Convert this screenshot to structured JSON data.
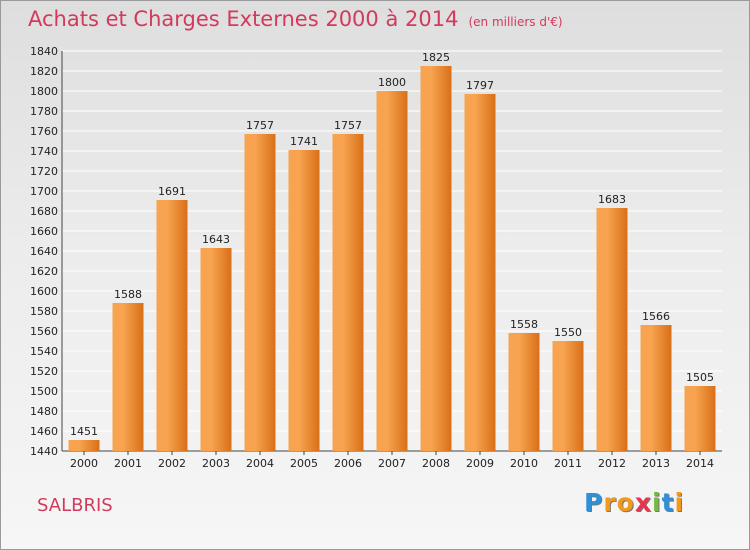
{
  "title": "Achats et Charges Externes 2000 à 2014",
  "subtitle": "(en milliers d'€)",
  "place": "SALBRIS",
  "logo": {
    "letters": [
      "P",
      "r",
      "o",
      "x",
      "i",
      "t",
      "i"
    ],
    "colors": [
      "#2f8fd8",
      "#f39a1e",
      "#f39a1e",
      "#e8344f",
      "#78b844",
      "#2f8fd8",
      "#f39a1e"
    ]
  },
  "colors": {
    "bar_light": "#f7a34f",
    "bar_dark": "#d86f18",
    "grid": "#ffffff",
    "title": "#d23a5c"
  },
  "chart_data": {
    "type": "bar",
    "categories": [
      "2000",
      "2001",
      "2002",
      "2003",
      "2004",
      "2005",
      "2006",
      "2007",
      "2008",
      "2009",
      "2010",
      "2011",
      "2012",
      "2013",
      "2014"
    ],
    "values": [
      1451,
      1588,
      1691,
      1643,
      1757,
      1741,
      1757,
      1800,
      1825,
      1797,
      1558,
      1550,
      1683,
      1566,
      1505
    ],
    "ylim": [
      1440,
      1840
    ],
    "ytick_step": 20,
    "grid": true,
    "xlabel": "",
    "ylabel": ""
  }
}
